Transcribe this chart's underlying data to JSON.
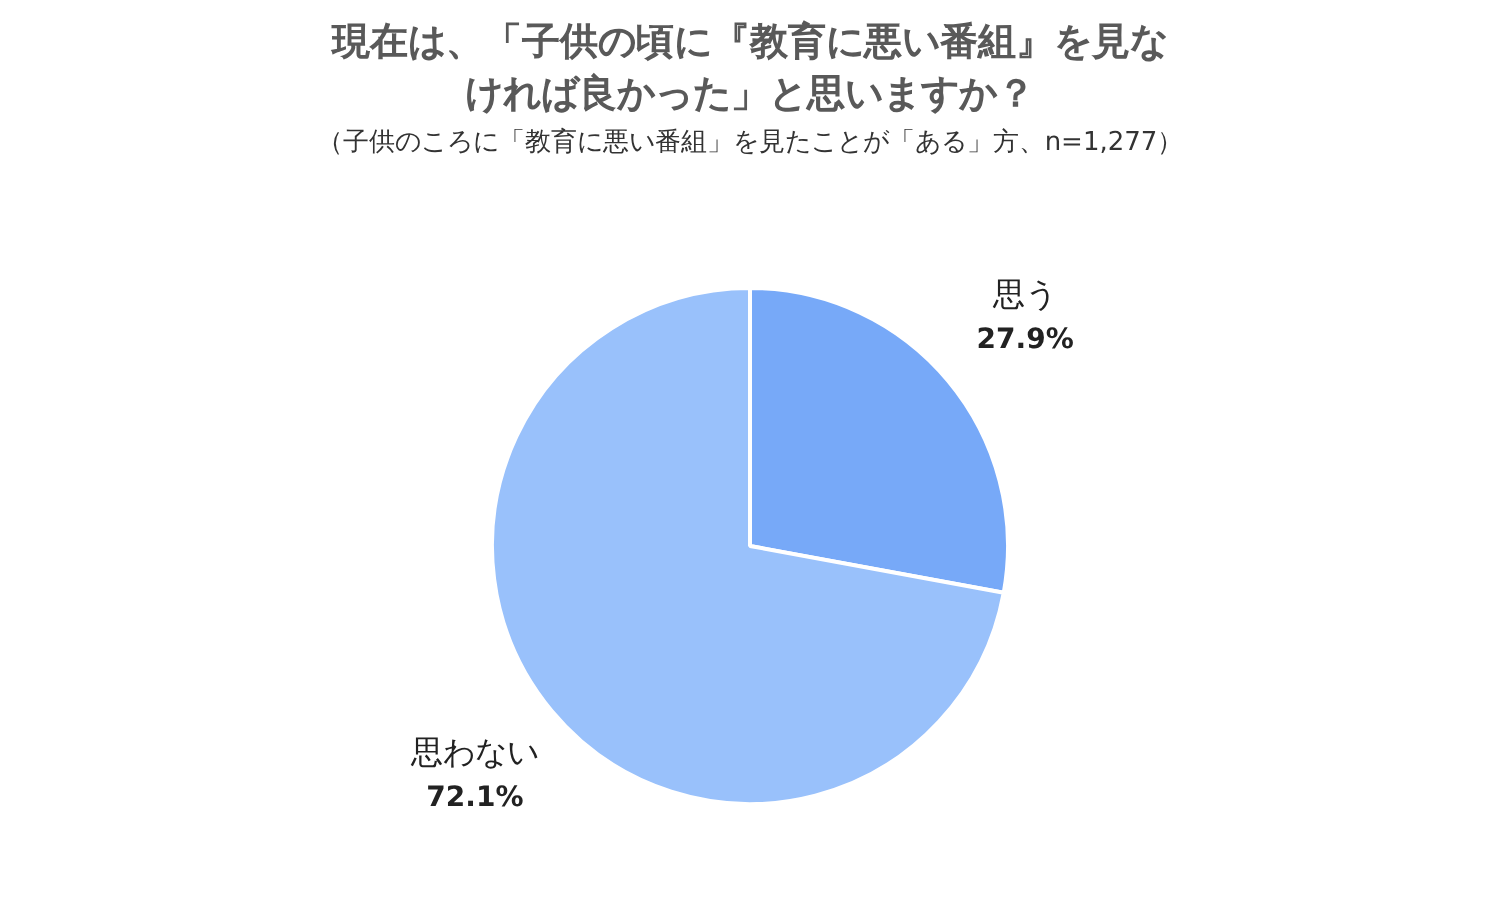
{
  "chart_data": {
    "type": "pie",
    "title": "現在は、「子供の頃に『教育に悪い番組』を見なければ良かった」と思いますか？",
    "subtitle": "（子供のころに「教育に悪い番組」を見たことが「ある」方、n=1,277）",
    "categories": [
      "思う",
      "思わない"
    ],
    "values": [
      27.9,
      72.1
    ],
    "value_labels": [
      "27.9%",
      "72.1%"
    ],
    "colors": [
      "#77a9f8",
      "#99c1fb"
    ]
  }
}
